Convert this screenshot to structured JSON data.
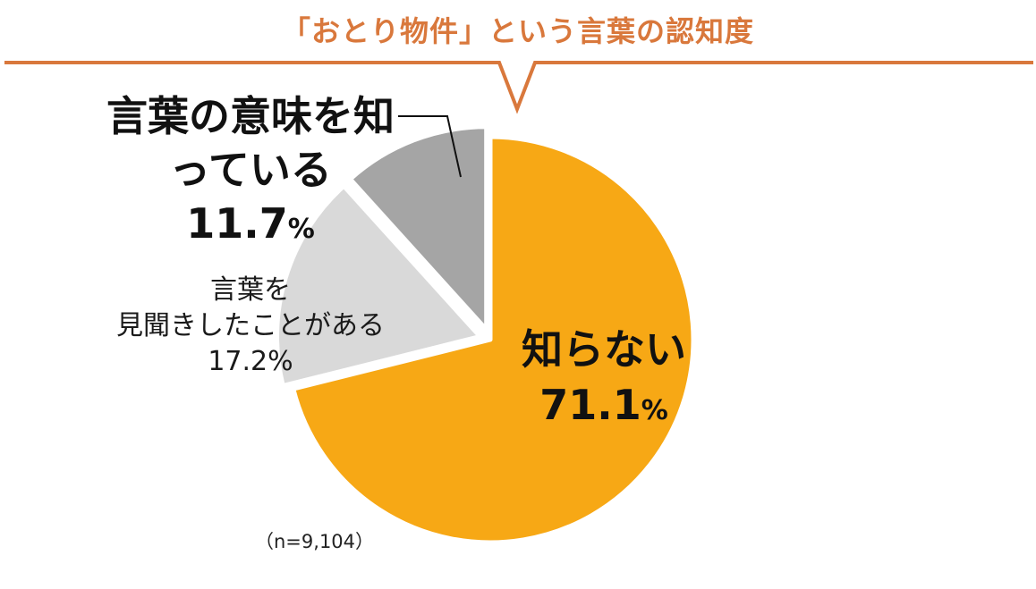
{
  "chart_data": {
    "type": "pie",
    "title": "「おとり物件」という言葉の認知度",
    "note": "（n=9,104）",
    "slices": [
      {
        "label": "知らない",
        "value": 71.1,
        "value_text": "71.1",
        "color": "#f7a815"
      },
      {
        "label": "言葉を見聞きしたことがある",
        "label_lines": [
          "言葉を",
          "見聞きしたことがある"
        ],
        "value": 17.2,
        "value_text": "17.2%",
        "color": "#d9d9d9"
      },
      {
        "label": "言葉の意味を知っている",
        "label_lines": [
          "言葉の意味を知",
          "っている"
        ],
        "value": 11.7,
        "value_text": "11.7",
        "color": "#a5a5a5"
      }
    ],
    "percent_sign": "%",
    "start": "12 o'clock",
    "direction": "clockwise",
    "legend": "none (direct labels)"
  },
  "colors": {
    "title": "#d9783c",
    "frame_line": "#d9783c",
    "slice_border": "#ffffff",
    "leader_line": "#111111"
  }
}
